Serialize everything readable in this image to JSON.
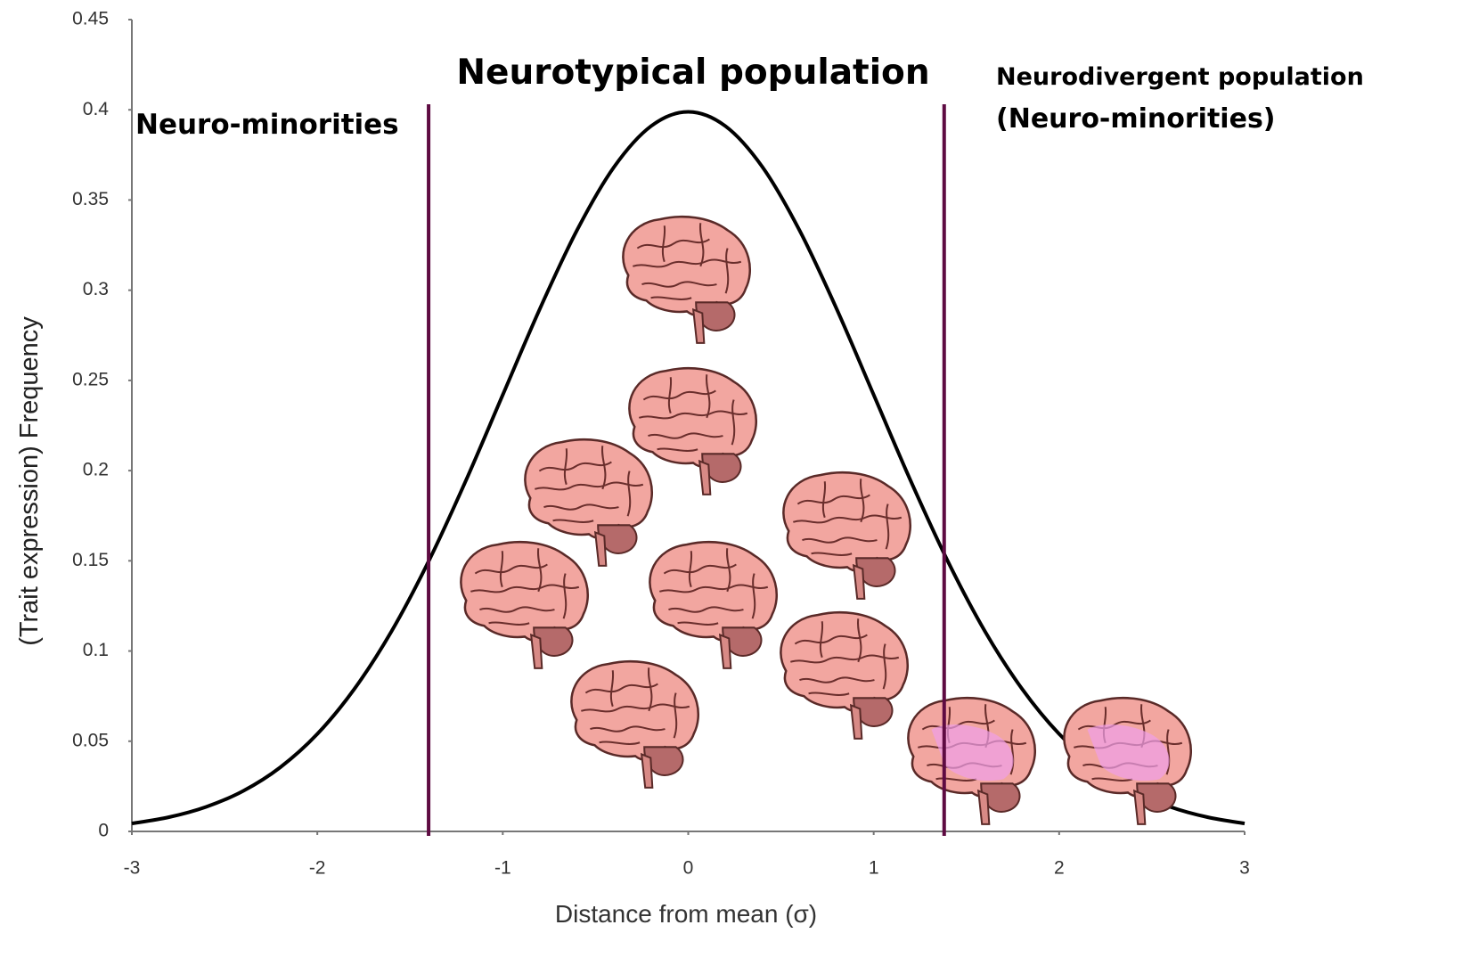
{
  "chart_data": {
    "type": "line",
    "x": [
      -3,
      -2.8,
      -2.6,
      -2.4,
      -2.2,
      -2,
      -1.8,
      -1.6,
      -1.4,
      -1.2,
      -1,
      -0.8,
      -0.6,
      -0.4,
      -0.2,
      0,
      0.2,
      0.4,
      0.6,
      0.8,
      1,
      1.2,
      1.4,
      1.6,
      1.8,
      2,
      2.2,
      2.4,
      2.6,
      2.8,
      3
    ],
    "values": [
      0.0044,
      0.0079,
      0.0136,
      0.0224,
      0.0355,
      0.054,
      0.079,
      0.1109,
      0.1497,
      0.1942,
      0.242,
      0.2897,
      0.3332,
      0.3683,
      0.391,
      0.3989,
      0.391,
      0.3683,
      0.3332,
      0.2897,
      0.242,
      0.1942,
      0.1497,
      0.1109,
      0.079,
      0.054,
      0.0355,
      0.0224,
      0.0136,
      0.0079,
      0.0044
    ],
    "color": "#000000",
    "xlim": [
      -3,
      3
    ],
    "xticks": [
      -3,
      -2,
      -1,
      0,
      1,
      2,
      3
    ],
    "ylim": [
      0,
      0.45
    ],
    "yticks": [
      0,
      0.05,
      0.1,
      0.15,
      0.2,
      0.25,
      0.3,
      0.35,
      0.4,
      0.45
    ],
    "x_label": "Distance from mean (σ)",
    "y_label": "(Trait expression) Frequency",
    "vlines": [
      -1.4,
      1.38
    ],
    "vline_color": "#5e0b42",
    "annotations": [
      "Neuro-minorities",
      "Neurotypical population",
      "Neurodivergent population",
      "(Neuro-minorities)"
    ]
  }
}
